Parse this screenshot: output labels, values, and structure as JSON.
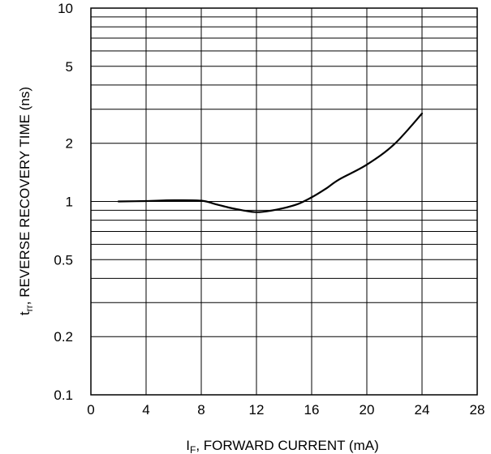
{
  "chart_data": {
    "type": "line",
    "title": "",
    "xlabel": {
      "symbol": "I",
      "subscript": "F",
      "text": ", FORWARD CURRENT (mA)"
    },
    "ylabel": {
      "symbol": "t",
      "subscript": "rr",
      "text": ", REVERSE RECOVERY TIME (ns)"
    },
    "x_ticks": [
      "0",
      "4",
      "8",
      "12",
      "16",
      "20",
      "24",
      "28"
    ],
    "y_ticks": [
      {
        "value": 0.1,
        "label": "0.1"
      },
      {
        "value": 0.2,
        "label": "0.2"
      },
      {
        "value": 0.5,
        "label": "0.5"
      },
      {
        "value": 1,
        "label": "1"
      },
      {
        "value": 2,
        "label": "2"
      },
      {
        "value": 5,
        "label": "5"
      },
      {
        "value": 10,
        "label": "10"
      }
    ],
    "xlim": [
      0,
      28
    ],
    "ylim": [
      0.1,
      10
    ],
    "y_scale": "log",
    "grid": true,
    "x": [
      2,
      4,
      6,
      8,
      9,
      10,
      11,
      12,
      13,
      14,
      15,
      16,
      17,
      18,
      20,
      22,
      24
    ],
    "y": [
      1.0,
      1.005,
      1.015,
      1.01,
      0.97,
      0.93,
      0.9,
      0.88,
      0.895,
      0.925,
      0.97,
      1.05,
      1.16,
      1.3,
      1.55,
      1.98,
      2.85
    ],
    "line_color": "#000000"
  }
}
